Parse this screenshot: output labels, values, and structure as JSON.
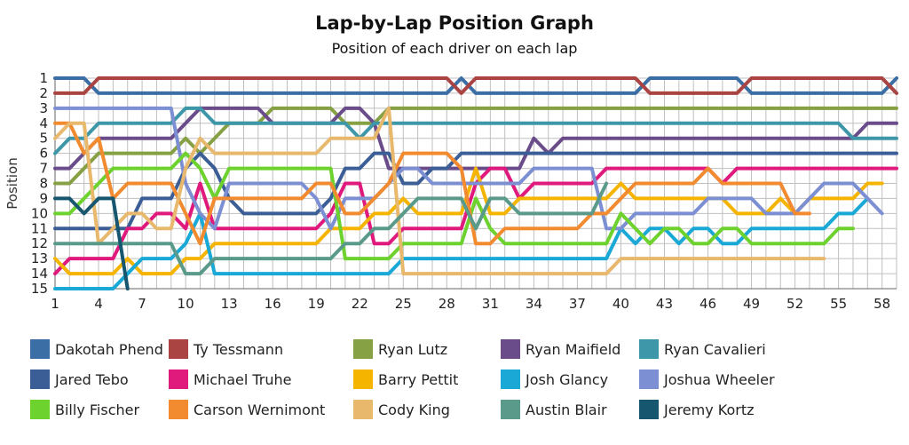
{
  "chart_data": {
    "type": "line",
    "title": "Lap-by-Lap Position Graph",
    "subtitle": "Position of each driver on each lap",
    "ylabel": "Position",
    "xlabel": "",
    "x_ticks": [
      1,
      4,
      7,
      10,
      13,
      16,
      19,
      22,
      25,
      28,
      31,
      34,
      37,
      40,
      43,
      46,
      49,
      52,
      55,
      58
    ],
    "y_ticks": [
      1,
      2,
      3,
      4,
      5,
      6,
      7,
      8,
      9,
      10,
      11,
      12,
      13,
      14,
      15
    ],
    "xlim": [
      1,
      59
    ],
    "ylim": [
      1,
      15
    ],
    "y_inverted": true,
    "grid": true,
    "legend_position": "bottom",
    "series": [
      {
        "name": "Dakotah Phend",
        "color": "#3a6ea5",
        "values": [
          1,
          1,
          1,
          2,
          2,
          2,
          2,
          2,
          2,
          2,
          2,
          2,
          2,
          2,
          2,
          2,
          2,
          2,
          2,
          2,
          2,
          2,
          2,
          2,
          2,
          2,
          2,
          2,
          1,
          2,
          2,
          2,
          2,
          2,
          2,
          2,
          2,
          2,
          2,
          2,
          2,
          1,
          1,
          1,
          1,
          1,
          1,
          1,
          2,
          2,
          2,
          2,
          2,
          2,
          2,
          2,
          2,
          2,
          1
        ]
      },
      {
        "name": "Ty Tessmann",
        "color": "#a94442",
        "values": [
          2,
          2,
          2,
          1,
          1,
          1,
          1,
          1,
          1,
          1,
          1,
          1,
          1,
          1,
          1,
          1,
          1,
          1,
          1,
          1,
          1,
          1,
          1,
          1,
          1,
          1,
          1,
          1,
          2,
          1,
          1,
          1,
          1,
          1,
          1,
          1,
          1,
          1,
          1,
          1,
          1,
          2,
          2,
          2,
          2,
          2,
          2,
          2,
          1,
          1,
          1,
          1,
          1,
          1,
          1,
          1,
          1,
          1,
          2
        ]
      },
      {
        "name": "Ryan Lutz",
        "color": "#86a044",
        "values": [
          8,
          8,
          7,
          6,
          6,
          6,
          6,
          6,
          6,
          5,
          6,
          5,
          4,
          4,
          4,
          3,
          3,
          3,
          3,
          3,
          4,
          4,
          4,
          3,
          3,
          3,
          3,
          3,
          3,
          3,
          3,
          3,
          3,
          3,
          3,
          3,
          3,
          3,
          3,
          3,
          3,
          3,
          3,
          3,
          3,
          3,
          3,
          3,
          3,
          3,
          3,
          3,
          3,
          3,
          3,
          3,
          3,
          3,
          3
        ]
      },
      {
        "name": "Ryan Maifield",
        "color": "#6b4c8a",
        "values": [
          7,
          7,
          6,
          5,
          5,
          5,
          5,
          5,
          5,
          4,
          3,
          3,
          3,
          3,
          3,
          4,
          4,
          4,
          4,
          4,
          3,
          3,
          4,
          7,
          7,
          7,
          7,
          7,
          7,
          7,
          7,
          7,
          7,
          5,
          6,
          5,
          5,
          5,
          5,
          5,
          5,
          5,
          5,
          5,
          5,
          5,
          5,
          5,
          5,
          5,
          5,
          5,
          5,
          5,
          5,
          5,
          4,
          4,
          4
        ]
      },
      {
        "name": "Ryan Cavalieri",
        "color": "#3d97a8",
        "values": [
          6,
          5,
          5,
          4,
          4,
          4,
          4,
          4,
          4,
          3,
          3,
          4,
          4,
          4,
          4,
          4,
          4,
          4,
          4,
          4,
          4,
          5,
          4,
          4,
          4,
          4,
          4,
          4,
          4,
          4,
          4,
          4,
          4,
          4,
          4,
          4,
          4,
          4,
          4,
          4,
          4,
          4,
          4,
          4,
          4,
          4,
          4,
          4,
          4,
          4,
          4,
          4,
          4,
          4,
          4,
          5,
          5,
          5,
          5
        ]
      },
      {
        "name": "Jared Tebo",
        "color": "#3b5e96",
        "values": [
          11,
          11,
          11,
          11,
          11,
          11,
          9,
          9,
          9,
          7,
          6,
          7,
          9,
          10,
          10,
          10,
          10,
          10,
          10,
          9,
          7,
          7,
          6,
          6,
          8,
          8,
          7,
          7,
          6,
          6,
          6,
          6,
          6,
          6,
          6,
          6,
          6,
          6,
          6,
          6,
          6,
          6,
          6,
          6,
          6,
          6,
          6,
          6,
          6,
          6,
          6,
          6,
          6,
          6,
          6,
          6,
          6,
          6,
          6
        ]
      },
      {
        "name": "Michael Truhe",
        "color": "#e0197d",
        "values": [
          14,
          13,
          13,
          13,
          13,
          11,
          11,
          10,
          10,
          11,
          8,
          11,
          11,
          11,
          11,
          11,
          11,
          11,
          11,
          10,
          8,
          8,
          12,
          12,
          11,
          11,
          11,
          11,
          11,
          8,
          7,
          7,
          9,
          8,
          8,
          8,
          8,
          8,
          7,
          7,
          7,
          7,
          7,
          7,
          7,
          7,
          8,
          7,
          7,
          7,
          7,
          7,
          7,
          7,
          7,
          7,
          7,
          7,
          7
        ]
      },
      {
        "name": "Barry Pettit",
        "color": "#f5b400",
        "values": [
          13,
          14,
          14,
          14,
          14,
          13,
          14,
          14,
          14,
          13,
          13,
          12,
          12,
          12,
          12,
          12,
          12,
          12,
          12,
          11,
          11,
          11,
          10,
          10,
          9,
          10,
          10,
          10,
          10,
          7,
          10,
          10,
          9,
          9,
          9,
          9,
          9,
          9,
          9,
          8,
          9,
          9,
          9,
          9,
          9,
          9,
          9,
          10,
          10,
          10,
          9,
          10,
          9,
          9,
          9,
          9,
          8,
          8
        ]
      },
      {
        "name": "Josh Glancy",
        "color": "#1aa9d6",
        "values": [
          15,
          15,
          15,
          15,
          15,
          14,
          13,
          13,
          13,
          12,
          10,
          14,
          14,
          14,
          14,
          14,
          14,
          14,
          14,
          14,
          14,
          14,
          14,
          14,
          13,
          13,
          13,
          13,
          13,
          13,
          13,
          13,
          13,
          13,
          13,
          13,
          13,
          13,
          13,
          11,
          12,
          11,
          11,
          12,
          11,
          11,
          12,
          12,
          11,
          11,
          11,
          11,
          11,
          11,
          10,
          10,
          9
        ]
      },
      {
        "name": "Joshua Wheeler",
        "color": "#7c8fd2",
        "values": [
          3,
          3,
          3,
          3,
          3,
          3,
          3,
          3,
          3,
          8,
          10,
          11,
          8,
          8,
          8,
          8,
          8,
          8,
          9,
          11,
          9,
          9,
          9,
          8,
          7,
          7,
          8,
          8,
          8,
          8,
          8,
          8,
          8,
          7,
          7,
          7,
          7,
          7,
          11,
          11,
          10,
          10,
          10,
          10,
          10,
          9,
          9,
          9,
          9,
          10,
          10,
          10,
          9,
          8,
          8,
          8,
          9,
          10
        ]
      },
      {
        "name": "Billy Fischer",
        "color": "#6dd12e",
        "values": [
          10,
          10,
          9,
          8,
          7,
          7,
          7,
          7,
          7,
          6,
          7,
          9,
          7,
          7,
          7,
          7,
          7,
          7,
          7,
          7,
          13,
          13,
          13,
          13,
          12,
          12,
          12,
          12,
          12,
          9,
          11,
          12,
          12,
          12,
          12,
          12,
          12,
          12,
          12,
          10,
          11,
          12,
          11,
          11,
          12,
          12,
          11,
          11,
          12,
          12,
          12,
          12,
          12,
          12,
          11,
          11
        ]
      },
      {
        "name": "Carson Wernimont",
        "color": "#f28b30",
        "values": [
          4,
          4,
          6,
          5,
          9,
          8,
          8,
          8,
          8,
          10,
          12,
          9,
          9,
          9,
          9,
          9,
          9,
          9,
          8,
          8,
          10,
          10,
          9,
          8,
          6,
          6,
          6,
          6,
          7,
          12,
          12,
          11,
          11,
          11,
          11,
          11,
          11,
          10,
          10,
          9,
          8,
          8,
          8,
          8,
          8,
          7,
          8,
          8,
          8,
          8,
          8,
          10,
          10
        ]
      },
      {
        "name": "Cody King",
        "color": "#e8b86d",
        "values": [
          5,
          4,
          4,
          12,
          11,
          10,
          10,
          11,
          11,
          7,
          5,
          6,
          6,
          6,
          6,
          6,
          6,
          6,
          6,
          5,
          5,
          5,
          5,
          3,
          14,
          14,
          14,
          14,
          14,
          14,
          14,
          14,
          14,
          14,
          14,
          14,
          14,
          14,
          14,
          13,
          13,
          13,
          13,
          13,
          13,
          13,
          13,
          13,
          13,
          13,
          13,
          13,
          13,
          13
        ]
      },
      {
        "name": "Austin Blair",
        "color": "#5a9a8a",
        "values": [
          12,
          12,
          12,
          12,
          12,
          12,
          12,
          12,
          12,
          14,
          14,
          13,
          13,
          13,
          13,
          13,
          13,
          13,
          13,
          13,
          12,
          12,
          11,
          11,
          10,
          9,
          9,
          9,
          9,
          11,
          9,
          9,
          10,
          10,
          10,
          10,
          10,
          10,
          8
        ]
      },
      {
        "name": "Jeremy Kortz",
        "color": "#16566e",
        "values": [
          9,
          9,
          10,
          9,
          9,
          15
        ]
      }
    ]
  }
}
